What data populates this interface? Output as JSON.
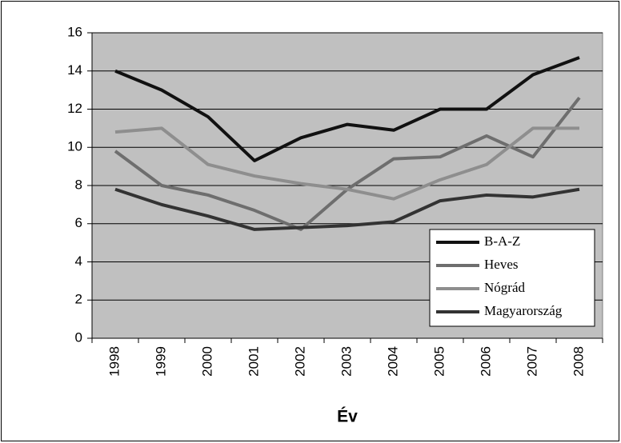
{
  "chart_data": {
    "type": "line",
    "x_label": "Év",
    "categories": [
      "1998",
      "1999",
      "2000",
      "2001",
      "2002",
      "2003",
      "2004",
      "2005",
      "2006",
      "2007",
      "2008"
    ],
    "series": [
      {
        "name": "B-A-Z",
        "color": "#111111",
        "values": [
          14.0,
          13.0,
          11.6,
          9.3,
          10.5,
          11.2,
          10.9,
          12.0,
          12.0,
          13.8,
          14.7
        ]
      },
      {
        "name": "Heves",
        "color": "#6e6e6e",
        "values": [
          9.8,
          8.0,
          7.5,
          6.7,
          5.7,
          7.8,
          9.4,
          9.5,
          10.6,
          9.5,
          12.6
        ]
      },
      {
        "name": "Nógrád",
        "color": "#8e8e8e",
        "values": [
          10.8,
          11.0,
          9.1,
          8.5,
          8.1,
          7.8,
          7.3,
          8.3,
          9.1,
          11.0,
          11.0
        ]
      },
      {
        "name": "Magyarország",
        "color": "#333333",
        "values": [
          7.8,
          7.0,
          6.4,
          5.7,
          5.8,
          5.9,
          6.1,
          7.2,
          7.5,
          7.4,
          7.8
        ]
      }
    ],
    "ylim": [
      0,
      16
    ],
    "yticks": [
      0,
      2,
      4,
      6,
      8,
      10,
      12,
      14,
      16
    ],
    "grid": true,
    "legend": "lower right"
  }
}
